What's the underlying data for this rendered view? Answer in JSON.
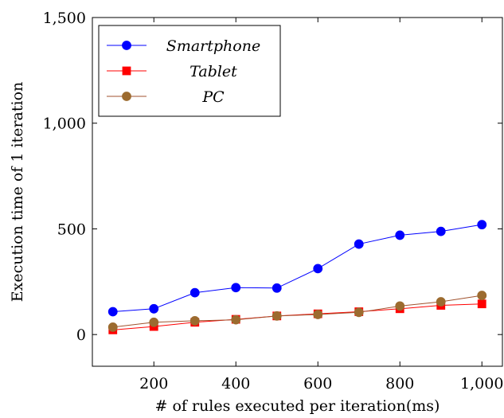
{
  "chart_data": {
    "type": "line",
    "xlabel": "# of rules executed per iteration(ms)",
    "ylabel": "Execution time of 1 iteration",
    "xlim": [
      50,
      1050
    ],
    "ylim": [
      -150,
      1500
    ],
    "xticks": [
      200,
      400,
      600,
      800,
      1000
    ],
    "yticks": [
      0,
      500,
      1000,
      1500
    ],
    "xtick_labels": [
      "200",
      "400",
      "600",
      "800",
      "1,000"
    ],
    "ytick_labels": [
      "0",
      "500",
      "1,000",
      "1,500"
    ],
    "grid": false,
    "legend_position": "top-left",
    "x": [
      100,
      200,
      300,
      400,
      500,
      600,
      700,
      800,
      900,
      1000
    ],
    "series": [
      {
        "name": "Smartphone",
        "color": "#0000ff",
        "marker": "circle",
        "values": [
          108,
          122,
          198,
          222,
          220,
          312,
          428,
          470,
          488,
          520
        ]
      },
      {
        "name": "Tablet",
        "color": "#ff0000",
        "marker": "square",
        "values": [
          22,
          38,
          58,
          72,
          88,
          98,
          108,
          122,
          138,
          145
        ]
      },
      {
        "name": "PC",
        "color": "#a0522d",
        "marker": "circle",
        "values": [
          35,
          58,
          65,
          70,
          88,
          95,
          105,
          135,
          155,
          185
        ]
      }
    ]
  }
}
